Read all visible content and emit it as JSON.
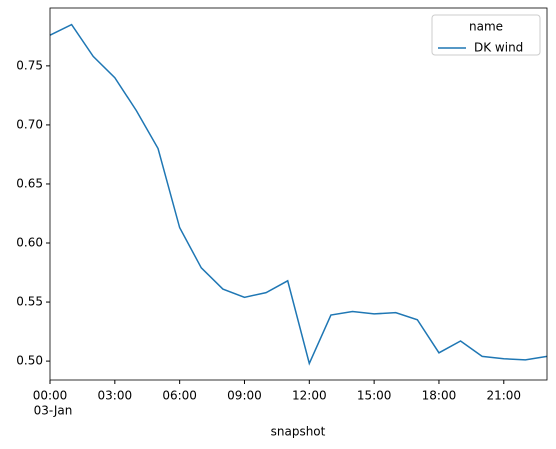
{
  "chart_data": {
    "type": "line",
    "xlabel": "snapshot",
    "x": [
      0,
      1,
      2,
      3,
      4,
      5,
      6,
      7,
      8,
      9,
      10,
      11,
      12,
      13,
      14,
      15,
      16,
      17,
      18,
      19,
      20,
      21,
      22,
      23
    ],
    "x_date_label": "03-Jan",
    "series": [
      {
        "name": "DK wind",
        "color": "#1f77b4",
        "values": [
          0.776,
          0.785,
          0.758,
          0.74,
          0.712,
          0.68,
          0.613,
          0.579,
          0.561,
          0.554,
          0.558,
          0.568,
          0.498,
          0.539,
          0.542,
          0.54,
          0.541,
          0.535,
          0.507,
          0.517,
          0.504,
          0.502,
          0.501,
          0.504
        ]
      }
    ],
    "legend_title": "name",
    "legend": "upper right",
    "xlim": [
      0,
      23
    ],
    "xticks": [
      {
        "value": 0,
        "label": "00:00"
      },
      {
        "value": 3,
        "label": "03:00"
      },
      {
        "value": 6,
        "label": "06:00"
      },
      {
        "value": 9,
        "label": "09:00"
      },
      {
        "value": 12,
        "label": "12:00"
      },
      {
        "value": 15,
        "label": "15:00"
      },
      {
        "value": 18,
        "label": "18:00"
      },
      {
        "value": 21,
        "label": "21:00"
      }
    ],
    "ylim": [
      0.484,
      0.799
    ],
    "yticks": [
      {
        "value": 0.5,
        "label": "0.50"
      },
      {
        "value": 0.55,
        "label": "0.55"
      },
      {
        "value": 0.6,
        "label": "0.60"
      },
      {
        "value": 0.65,
        "label": "0.65"
      },
      {
        "value": 0.7,
        "label": "0.70"
      },
      {
        "value": 0.75,
        "label": "0.75"
      }
    ],
    "grid": false
  }
}
